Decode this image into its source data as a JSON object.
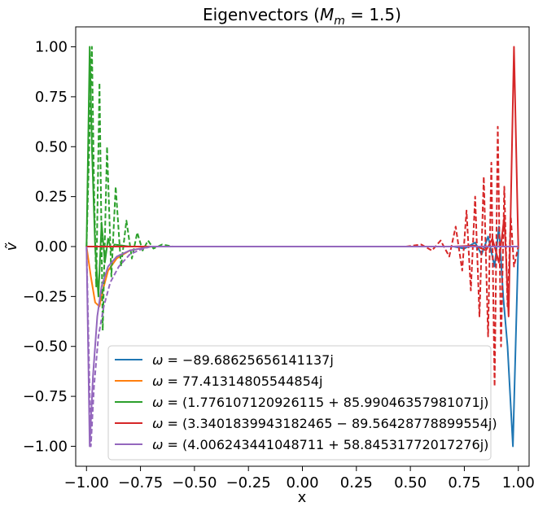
{
  "chart_data": {
    "type": "line",
    "title": "Eigenvectors (M_m = 1.5)",
    "title_parts": {
      "prefix": "Eigenvectors (",
      "M": "M",
      "sub": "m",
      "suffix": " = 1.5)"
    },
    "xlabel": "x",
    "ylabel": "ṽ",
    "xlim": [
      -1.05,
      1.05
    ],
    "ylim": [
      -1.1,
      1.1
    ],
    "xticks": [
      -1.0,
      -0.75,
      -0.5,
      -0.25,
      0.0,
      0.25,
      0.5,
      0.75,
      1.0
    ],
    "xtick_labels": [
      "−1.00",
      "−0.75",
      "−0.50",
      "−0.25",
      "0.00",
      "0.25",
      "0.50",
      "0.75",
      "1.00"
    ],
    "yticks": [
      1.0,
      0.75,
      0.5,
      0.25,
      0.0,
      -0.25,
      -0.5,
      -0.75,
      -1.0
    ],
    "ytick_labels": [
      "1.00",
      "0.75",
      "0.50",
      "0.25",
      "0.00",
      "−0.25",
      "−0.50",
      "−0.75",
      "−1.00"
    ],
    "grid": false,
    "legend_position": "lower-center",
    "series": [
      {
        "name": "ω = −89.68625656141137j",
        "color": "#1f77b4",
        "style": "solid",
        "points": [
          [
            -1.0,
            0
          ],
          [
            0.5,
            0
          ],
          [
            0.6,
            0
          ],
          [
            0.7,
            0.0
          ],
          [
            0.75,
            -0.01
          ],
          [
            0.8,
            0.02
          ],
          [
            0.83,
            -0.04
          ],
          [
            0.86,
            0.05
          ],
          [
            0.89,
            -0.1
          ],
          [
            0.91,
            0.1
          ],
          [
            0.93,
            -0.25
          ],
          [
            0.95,
            -0.5
          ],
          [
            0.975,
            -1.0
          ],
          [
            1.0,
            0
          ]
        ]
      },
      {
        "name": "ω = 77.41314805544854j",
        "color": "#ff7f0e",
        "style": "solid",
        "points": [
          [
            -1.0,
            0
          ],
          [
            -0.98,
            -0.15
          ],
          [
            -0.96,
            -0.28
          ],
          [
            -0.94,
            -0.3
          ],
          [
            -0.92,
            -0.2
          ],
          [
            -0.9,
            -0.12
          ],
          [
            -0.86,
            -0.06
          ],
          [
            -0.8,
            -0.02
          ],
          [
            -0.7,
            0
          ],
          [
            1.0,
            0
          ]
        ]
      },
      {
        "name": "ω = (1.776107120926115 + 85.99046357981071j)",
        "color": "#2ca02c",
        "style": "solid",
        "points": [
          [
            -1.0,
            0
          ],
          [
            -0.985,
            1.0
          ],
          [
            -0.975,
            0.5
          ],
          [
            -0.96,
            0.0
          ],
          [
            -0.945,
            -0.25
          ],
          [
            -0.93,
            0.12
          ],
          [
            -0.915,
            -0.08
          ],
          [
            -0.9,
            0.04
          ],
          [
            -0.885,
            -0.02
          ],
          [
            -0.87,
            0.01
          ],
          [
            -0.8,
            0
          ],
          [
            1.0,
            0
          ]
        ]
      },
      {
        "name": "ω = (1.776107120926115 + 85.99046357981071j)",
        "color": "#2ca02c",
        "style": "dashed",
        "points": [
          [
            -1.0,
            0
          ],
          [
            -0.975,
            1.0
          ],
          [
            -0.965,
            0.3
          ],
          [
            -0.955,
            -0.2
          ],
          [
            -0.94,
            0.82
          ],
          [
            -0.925,
            -0.42
          ],
          [
            -0.905,
            0.5
          ],
          [
            -0.885,
            -0.15
          ],
          [
            -0.865,
            0.3
          ],
          [
            -0.84,
            -0.1
          ],
          [
            -0.815,
            0.13
          ],
          [
            -0.79,
            -0.06
          ],
          [
            -0.765,
            0.07
          ],
          [
            -0.74,
            -0.02
          ],
          [
            -0.715,
            0.03
          ],
          [
            -0.69,
            -0.01
          ],
          [
            -0.65,
            0.01
          ],
          [
            -0.6,
            0
          ],
          [
            1.0,
            0
          ]
        ]
      },
      {
        "name": "ω = (3.3401839943182465 − 89.56428778899554j)",
        "color": "#d62728",
        "style": "solid",
        "points": [
          [
            -1.0,
            0
          ],
          [
            0.7,
            0
          ],
          [
            0.8,
            0.005
          ],
          [
            0.85,
            -0.02
          ],
          [
            0.88,
            0.04
          ],
          [
            0.91,
            -0.08
          ],
          [
            0.935,
            0.15
          ],
          [
            0.955,
            -0.35
          ],
          [
            0.98,
            1.0
          ],
          [
            1.0,
            0
          ]
        ]
      },
      {
        "name": "ω = (3.3401839943182465 − 89.56428778899554j)",
        "color": "#d62728",
        "style": "dashed",
        "points": [
          [
            0.48,
            0
          ],
          [
            0.55,
            0.01
          ],
          [
            0.6,
            -0.02
          ],
          [
            0.64,
            0.03
          ],
          [
            0.68,
            -0.05
          ],
          [
            0.71,
            0.1
          ],
          [
            0.74,
            -0.12
          ],
          [
            0.76,
            0.18
          ],
          [
            0.78,
            -0.22
          ],
          [
            0.8,
            0.25
          ],
          [
            0.82,
            -0.35
          ],
          [
            0.84,
            0.35
          ],
          [
            0.86,
            -0.45
          ],
          [
            0.875,
            0.42
          ],
          [
            0.89,
            -0.7
          ],
          [
            0.905,
            0.6
          ],
          [
            0.92,
            -0.5
          ],
          [
            0.935,
            0.3
          ],
          [
            0.95,
            -0.3
          ],
          [
            0.965,
            0.15
          ],
          [
            0.98,
            -0.1
          ],
          [
            1.0,
            0
          ]
        ]
      },
      {
        "name": "ω = (4.006243441048711 + 58.84531772017276j)",
        "color": "#9467bd",
        "style": "solid",
        "points": [
          [
            -1.0,
            0
          ],
          [
            -0.985,
            -1.0
          ],
          [
            -0.97,
            -0.65
          ],
          [
            -0.95,
            -0.35
          ],
          [
            -0.93,
            -0.2
          ],
          [
            -0.9,
            -0.1
          ],
          [
            -0.86,
            -0.05
          ],
          [
            -0.8,
            -0.02
          ],
          [
            -0.7,
            0
          ],
          [
            1.0,
            0
          ]
        ]
      },
      {
        "name": "ω = (4.006243441048711 + 58.84531772017276j)",
        "color": "#9467bd",
        "style": "dashed",
        "points": [
          [
            -1.0,
            0
          ],
          [
            -0.98,
            -1.0
          ],
          [
            -0.965,
            -0.7
          ],
          [
            -0.945,
            -0.45
          ],
          [
            -0.92,
            -0.3
          ],
          [
            -0.89,
            -0.18
          ],
          [
            -0.85,
            -0.1
          ],
          [
            -0.8,
            -0.04
          ],
          [
            -0.75,
            -0.015
          ],
          [
            -0.7,
            0
          ],
          [
            1.0,
            0
          ]
        ]
      }
    ],
    "legend": [
      {
        "prefix": "ω = ",
        "value": "−89.68625656141137j",
        "color": "#1f77b4"
      },
      {
        "prefix": "ω = ",
        "value": "77.41314805544854j",
        "color": "#ff7f0e"
      },
      {
        "prefix": "ω = ",
        "value": "(1.776107120926115 + 85.99046357981071j)",
        "color": "#2ca02c"
      },
      {
        "prefix": "ω = ",
        "value": "(3.3401839943182465 − 89.56428778899554j)",
        "color": "#d62728"
      },
      {
        "prefix": "ω = ",
        "value": "(4.006243441048711 + 58.84531772017276j)",
        "color": "#9467bd"
      }
    ]
  }
}
